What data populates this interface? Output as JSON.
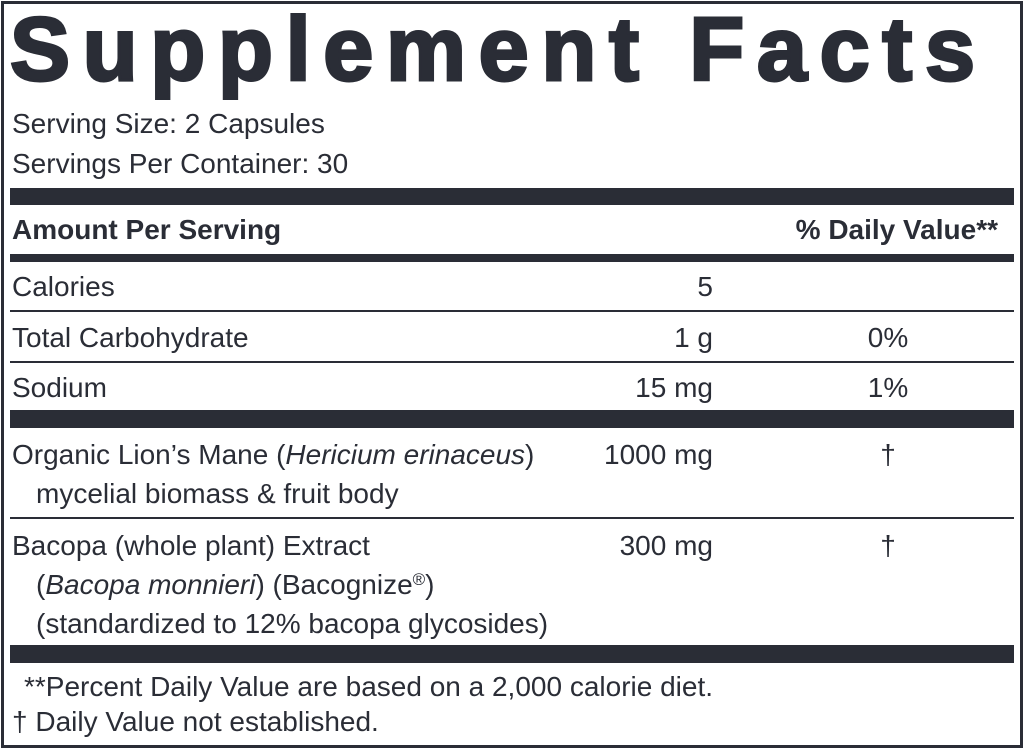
{
  "title": "Supplement Facts",
  "serving_size": "Serving Size: 2 Capsules",
  "servings_per_container": "Servings Per Container: 30",
  "header": {
    "amount": "Amount Per Serving",
    "daily_value": "% Daily Value**"
  },
  "nutrients": [
    {
      "name": "Calories",
      "amount": "5"
    },
    {
      "name": "Total Carbohydrate",
      "amount": "1 g",
      "daily_value": "0%"
    },
    {
      "name": "Sodium",
      "amount": "15 mg",
      "daily_value": "1%"
    }
  ],
  "ingredients": [
    {
      "lines": [
        [
          {
            "text": "Organic Lion’s Mane ("
          },
          {
            "text": "Hericium erinaceus",
            "style": "italic"
          },
          {
            "text": ")"
          }
        ],
        [
          {
            "text": "mycelial biomass & fruit body"
          }
        ]
      ],
      "amount": "1000 mg",
      "daily_value": "†"
    },
    {
      "lines": [
        [
          {
            "text": "Bacopa (whole plant) Extract"
          }
        ],
        [
          {
            "text": "("
          },
          {
            "text": "Bacopa monnieri",
            "style": "italic"
          },
          {
            "text": ") (Bacognize"
          },
          {
            "text": "®",
            "style": "sup"
          },
          {
            "text": ")"
          }
        ],
        [
          {
            "text": "(standardized to 12% bacopa glycosides)"
          }
        ]
      ],
      "amount": "300 mg",
      "daily_value": "†"
    }
  ],
  "footnotes": [
    "**Percent Daily Value are based on a 2,000 calorie diet.",
    "† Daily Value not established."
  ]
}
